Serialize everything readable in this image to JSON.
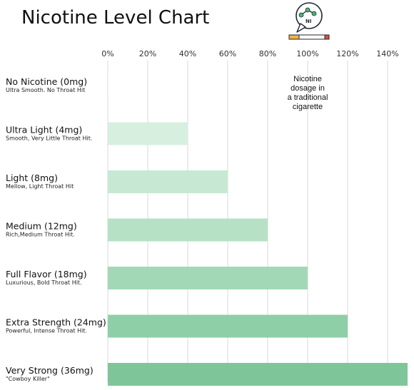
{
  "chart_data": {
    "type": "bar",
    "orientation": "horizontal",
    "title": "Nicotine Level Chart",
    "icon": "nicotine-molecule-cigarette-icon",
    "x_ticks": [
      "0%",
      "20%",
      "40%",
      "60%",
      "80%",
      "100%",
      "120%",
      "140%"
    ],
    "xlim": [
      0,
      150
    ],
    "grid": true,
    "categories": [
      {
        "label": "No Nicotine (0mg)",
        "sub": "Ultra Smooth. No Throat Hit",
        "value": 0,
        "color": "#e9f6ee"
      },
      {
        "label": "Ultra Light (4mg)",
        "sub": "Smooth, Very Little Throat Hit.",
        "value": 40,
        "color": "#d7efdf"
      },
      {
        "label": "Light (8mg)",
        "sub": "Mellow, Light Throat Hit",
        "value": 60,
        "color": "#c7e9d3"
      },
      {
        "label": "Medium (12mg)",
        "sub": "Rich,Medium Throat Hit.",
        "value": 80,
        "color": "#b6e1c5"
      },
      {
        "label": "Full Flavor (18mg)",
        "sub": "Luxurious, Bold Throat Hit.",
        "value": 100,
        "color": "#a3d8b6"
      },
      {
        "label": "Extra Strength (24mg)",
        "sub": "Powerful, Intense Throat Hit.",
        "value": 120,
        "color": "#8fcfa7"
      },
      {
        "label": "Very Strong (36mg)",
        "sub": "\"Cowboy Killer\"",
        "value": 150,
        "color": "#7ec699"
      }
    ],
    "annotation": {
      "lines": [
        "Nicotine",
        "dosage in",
        "a traditional",
        "cigarette"
      ],
      "at_value": 100
    }
  }
}
